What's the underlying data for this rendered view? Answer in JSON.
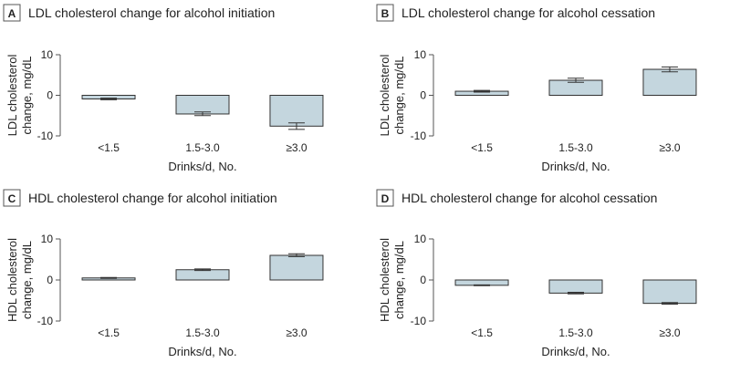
{
  "colors": {
    "bar_fill": "#c4d6de",
    "bar_stroke": "#333333",
    "axis": "#555555",
    "badge_stroke": "#555555"
  },
  "chart_data": [
    {
      "panel": "A",
      "type": "bar",
      "title": "LDL cholesterol change for alcohol initiation",
      "ylabel_lines": [
        "LDL cholesterol",
        "change, mg/dL"
      ],
      "xlabel": "Drinks/d, No.",
      "categories": [
        "<1.5",
        "1.5-3.0",
        "≥3.0"
      ],
      "values": [
        -0.9,
        -4.6,
        -7.6
      ],
      "error_low": [
        -1.1,
        -5.0,
        -8.4
      ],
      "error_high": [
        -0.7,
        -4.1,
        -6.8
      ],
      "ylim": [
        -10,
        10
      ],
      "yticks": [
        -10,
        0,
        10
      ]
    },
    {
      "panel": "B",
      "type": "bar",
      "title": "LDL cholesterol change for alcohol cessation",
      "ylabel_lines": [
        "LDL cholesterol",
        "change, mg/dL"
      ],
      "xlabel": "Drinks/d, No.",
      "categories": [
        "<1.5",
        "1.5-3.0",
        "≥3.0"
      ],
      "values": [
        1.0,
        3.7,
        6.4
      ],
      "error_low": [
        0.8,
        3.2,
        5.8
      ],
      "error_high": [
        1.2,
        4.2,
        7.0
      ],
      "ylim": [
        -10,
        10
      ],
      "yticks": [
        -10,
        0,
        10
      ]
    },
    {
      "panel": "C",
      "type": "bar",
      "title": "HDL cholesterol change for alcohol initiation",
      "ylabel_lines": [
        "HDL cholesterol",
        "change, mg/dL"
      ],
      "xlabel": "Drinks/d, No.",
      "categories": [
        "<1.5",
        "1.5-3.0",
        "≥3.0"
      ],
      "values": [
        0.5,
        2.5,
        6.0
      ],
      "error_low": [
        0.4,
        2.3,
        5.7
      ],
      "error_high": [
        0.6,
        2.7,
        6.4
      ],
      "ylim": [
        -10,
        10
      ],
      "yticks": [
        -10,
        0,
        10
      ]
    },
    {
      "panel": "D",
      "type": "bar",
      "title": "HDL cholesterol change for alcohol cessation",
      "ylabel_lines": [
        "HDL cholesterol",
        "change, mg/dL"
      ],
      "xlabel": "Drinks/d, No.",
      "categories": [
        "<1.5",
        "1.5-3.0",
        "≥3.0"
      ],
      "values": [
        -1.3,
        -3.2,
        -5.7
      ],
      "error_low": [
        -1.4,
        -3.4,
        -5.9
      ],
      "error_high": [
        -1.2,
        -3.0,
        -5.5
      ],
      "ylim": [
        -10,
        10
      ],
      "yticks": [
        -10,
        0,
        10
      ]
    }
  ]
}
